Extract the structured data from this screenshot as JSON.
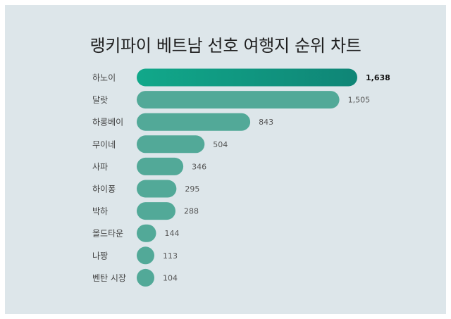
{
  "chart_data": {
    "type": "bar",
    "orientation": "horizontal",
    "title": "랭키파이 베트남 선호 여행지 순위 차트",
    "categories": [
      "하노이",
      "달랏",
      "하롱베이",
      "무이네",
      "사파",
      "하이퐁",
      "박하",
      "올드타운",
      "나짱",
      "벤탄 시장"
    ],
    "values": [
      1638,
      1505,
      843,
      504,
      346,
      295,
      288,
      144,
      113,
      104
    ],
    "value_labels": [
      "1,638",
      "1,505",
      "843",
      "504",
      "346",
      "295",
      "288",
      "144",
      "113",
      "104"
    ],
    "xlim": [
      0,
      1638
    ],
    "grid": false,
    "legend": "none",
    "colors": {
      "bar": "#52a998",
      "top_bar_start": "#11a88a",
      "top_bar_end": "#0f8576",
      "label": "#444444",
      "top_value": "#111111",
      "value": "#555555"
    }
  }
}
